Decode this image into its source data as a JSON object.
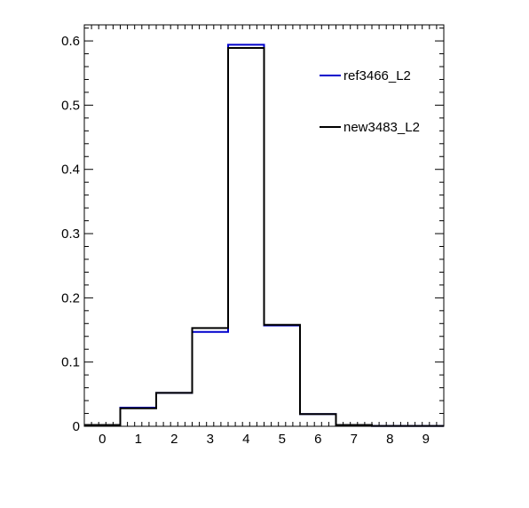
{
  "chart_data": {
    "type": "histogram",
    "title": "",
    "xlabel": "",
    "ylabel": "",
    "xlim": [
      -0.5,
      9.5
    ],
    "ylim": [
      0,
      0.625
    ],
    "x_ticks": [
      0,
      1,
      2,
      3,
      4,
      5,
      6,
      7,
      8,
      9
    ],
    "y_ticks": [
      0,
      0.1,
      0.2,
      0.3,
      0.4,
      0.5,
      0.6
    ],
    "y_tick_labels": [
      "0",
      "0.1",
      "0.2",
      "0.3",
      "0.4",
      "0.5",
      "0.6"
    ],
    "bins": [
      0,
      1,
      2,
      3,
      4,
      5,
      6,
      7,
      8,
      9
    ],
    "series": [
      {
        "name": "ref3466_L2",
        "color": "#0000cc",
        "values": [
          0.002,
          0.029,
          0.052,
          0.147,
          0.594,
          0.157,
          0.019,
          0.002,
          0.0005,
          0.0005
        ]
      },
      {
        "name": "new3483_L2",
        "color": "#000000",
        "values": [
          0.002,
          0.028,
          0.052,
          0.153,
          0.589,
          0.158,
          0.019,
          0.002,
          0.0005,
          0.0005
        ]
      }
    ],
    "legend_position": "top-right",
    "grid": false
  }
}
